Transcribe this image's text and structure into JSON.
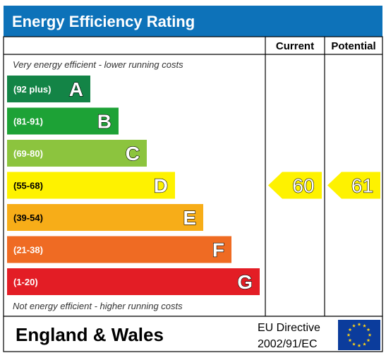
{
  "header": {
    "title": "Energy Efficiency Rating"
  },
  "columns": {
    "current": "Current",
    "potential": "Potential"
  },
  "notes": {
    "top": "Very energy efficient - lower running costs",
    "bottom": "Not energy efficient - higher running costs"
  },
  "chart_data": {
    "type": "bar",
    "title": "Energy Efficiency Rating",
    "bands": [
      {
        "range": "(92 plus)",
        "letter": "A",
        "color": "#138446"
      },
      {
        "range": "(81-91)",
        "letter": "B",
        "color": "#1da236"
      },
      {
        "range": "(69-80)",
        "letter": "C",
        "color": "#8cc43e"
      },
      {
        "range": "(55-68)",
        "letter": "D",
        "color": "#fef200"
      },
      {
        "range": "(39-54)",
        "letter": "E",
        "color": "#f7ad18"
      },
      {
        "range": "(21-38)",
        "letter": "F",
        "color": "#ef6b23"
      },
      {
        "range": "(1-20)",
        "letter": "G",
        "color": "#e31d25"
      }
    ],
    "current": {
      "value": 60,
      "band": "D",
      "color": "#fef200"
    },
    "potential": {
      "value": 61,
      "band": "D",
      "color": "#fef200"
    }
  },
  "footer": {
    "country": "England & Wales",
    "directive_line1": "EU Directive",
    "directive_line2": "2002/91/EC"
  },
  "colors": {
    "header_bg": "#0d72b9",
    "border": "#000000",
    "eu_flag": "#0b3c9c",
    "eu_star": "#fcd116"
  },
  "icons": {
    "eu_flag": "eu-flag-icon"
  }
}
